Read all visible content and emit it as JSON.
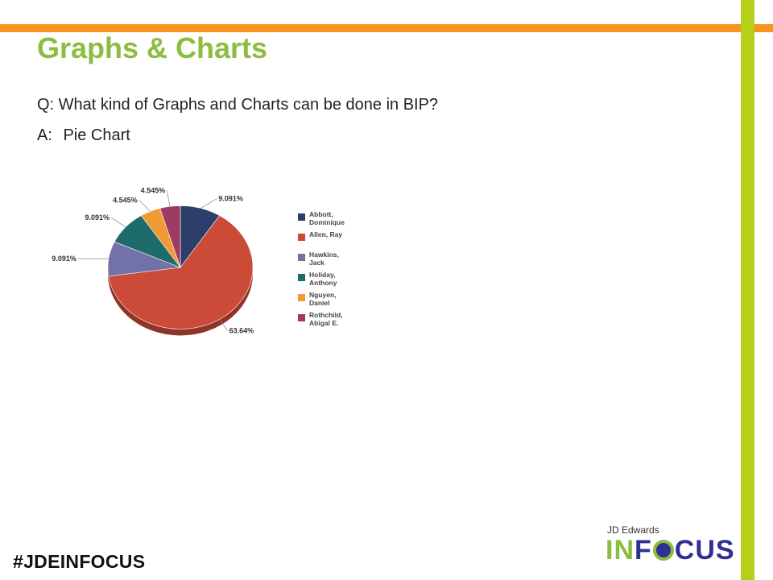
{
  "slide": {
    "title": "Graphs & Charts",
    "question": "Q: What kind of Graphs and Charts can be done in BIP?",
    "answer_label": "A:",
    "answer_text": "Pie Chart",
    "hashtag": "#JDEINFOCUS",
    "brand_small": "JD Edwards",
    "brand_logo_in": "IN",
    "brand_logo_rest": "CUS",
    "colors": {
      "orange": "#f7941d",
      "green": "#b5cf1b",
      "title_green": "#8cbd3f",
      "brand_blue": "#2e3192"
    }
  },
  "chart_data": {
    "type": "pie",
    "title": "",
    "categories": [
      "Abbott, Dominique",
      "Allen, Ray",
      "Hawkins, Jack",
      "Holiday, Anthony",
      "Nguyen, Daniel",
      "Rothchild, Abigal E."
    ],
    "legend_lines": [
      [
        "Abbott,",
        "Dominique"
      ],
      [
        "Allen, Ray"
      ],
      [
        "Hawkins,",
        "Jack"
      ],
      [
        "Holiday,",
        "Anthony"
      ],
      [
        "Nguyen,",
        "Daniel"
      ],
      [
        "Rothchild,",
        "Abigal E."
      ]
    ],
    "values": [
      9.091,
      63.64,
      9.091,
      9.091,
      4.545,
      4.545
    ],
    "labels": [
      "9.091%",
      "63.64%",
      "9.091%",
      "9.091%",
      "4.545%",
      "4.545%"
    ],
    "colors": [
      "#2d3e6b",
      "#cc4a38",
      "#7272a8",
      "#1e6b6b",
      "#f19a34",
      "#9e3b63"
    ],
    "legend_position": "right"
  }
}
